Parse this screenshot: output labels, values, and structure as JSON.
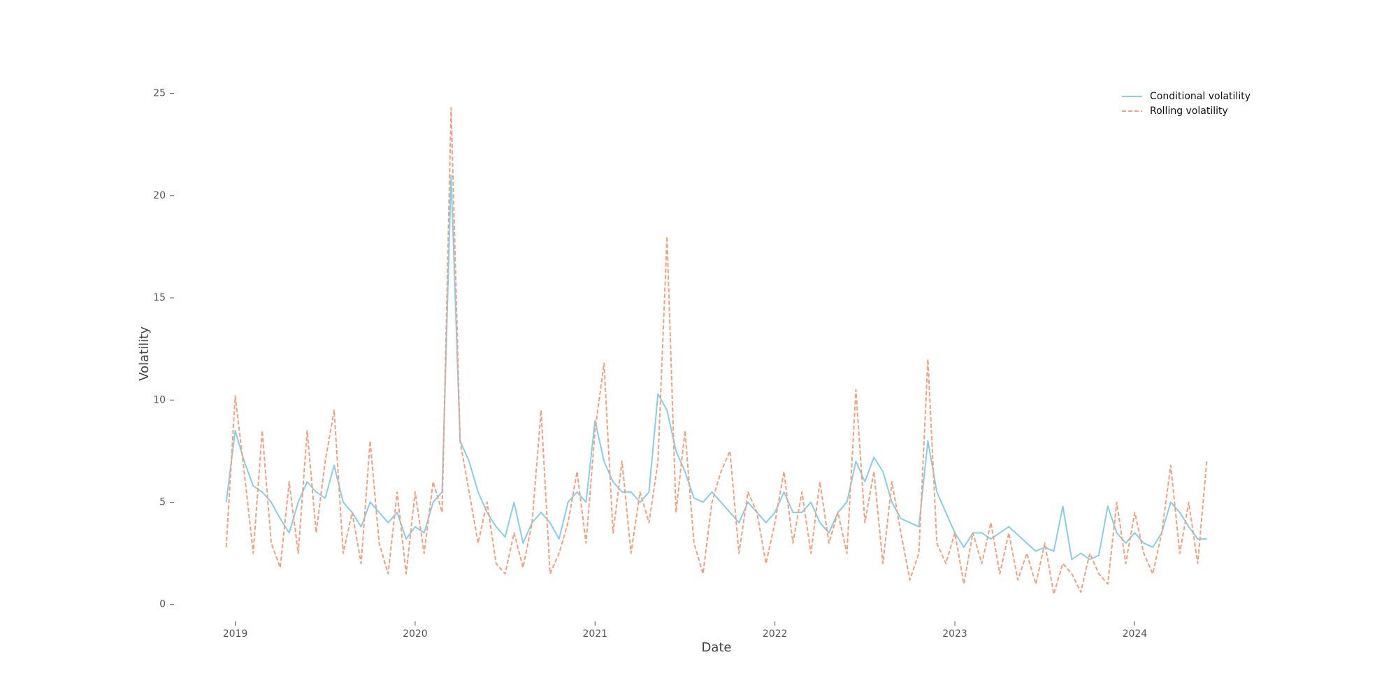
{
  "chart_data": {
    "type": "line",
    "x_label": "Date",
    "y_label": "Volatility",
    "x": [
      2018.95,
      2019.0,
      2019.05,
      2019.1,
      2019.15,
      2019.2,
      2019.25,
      2019.3,
      2019.35,
      2019.4,
      2019.45,
      2019.5,
      2019.55,
      2019.6,
      2019.65,
      2019.7,
      2019.75,
      2019.8,
      2019.85,
      2019.9,
      2019.95,
      2020.0,
      2020.05,
      2020.1,
      2020.15,
      2020.2,
      2020.25,
      2020.3,
      2020.35,
      2020.4,
      2020.45,
      2020.5,
      2020.55,
      2020.6,
      2020.65,
      2020.7,
      2020.75,
      2020.8,
      2020.85,
      2020.9,
      2020.95,
      2021.0,
      2021.05,
      2021.1,
      2021.15,
      2021.2,
      2021.25,
      2021.3,
      2021.35,
      2021.4,
      2021.45,
      2021.5,
      2021.55,
      2021.6,
      2021.65,
      2021.7,
      2021.75,
      2021.8,
      2021.85,
      2021.9,
      2021.95,
      2022.0,
      2022.05,
      2022.1,
      2022.15,
      2022.2,
      2022.25,
      2022.3,
      2022.35,
      2022.4,
      2022.45,
      2022.5,
      2022.55,
      2022.6,
      2022.65,
      2022.7,
      2022.75,
      2022.8,
      2022.85,
      2022.9,
      2022.95,
      2023.0,
      2023.05,
      2023.1,
      2023.15,
      2023.2,
      2023.25,
      2023.3,
      2023.35,
      2023.4,
      2023.45,
      2023.5,
      2023.55,
      2023.6,
      2023.65,
      2023.7,
      2023.75,
      2023.8,
      2023.85,
      2023.9,
      2023.95,
      2024.0,
      2024.05,
      2024.1,
      2024.15,
      2024.2,
      2024.25,
      2024.3,
      2024.35,
      2024.4
    ],
    "series": [
      {
        "name": "Conditional volatility",
        "color": "#87ceeb",
        "linestyle": "solid",
        "values": [
          5.0,
          8.5,
          7.0,
          5.8,
          5.5,
          5.0,
          4.2,
          3.5,
          5.0,
          6.0,
          5.5,
          5.2,
          6.8,
          5.0,
          4.5,
          3.8,
          5.0,
          4.5,
          4.0,
          4.5,
          3.2,
          3.8,
          3.5,
          5.0,
          5.5,
          21.0,
          8.0,
          7.0,
          5.5,
          4.5,
          3.8,
          3.3,
          5.0,
          3.0,
          4.0,
          4.5,
          4.0,
          3.2,
          5.0,
          5.5,
          5.0,
          9.0,
          7.0,
          6.0,
          5.5,
          5.5,
          5.0,
          5.5,
          10.3,
          9.5,
          7.5,
          6.5,
          5.2,
          5.0,
          5.5,
          5.0,
          4.5,
          4.0,
          5.0,
          4.5,
          4.0,
          4.5,
          5.5,
          4.5,
          4.5,
          5.0,
          4.0,
          3.5,
          4.5,
          5.0,
          7.0,
          6.0,
          7.2,
          6.5,
          5.0,
          4.2,
          4.0,
          3.8,
          8.0,
          5.5,
          4.5,
          3.5,
          2.8,
          3.5,
          3.5,
          3.2,
          3.5,
          3.8,
          3.4,
          3.0,
          2.6,
          2.8,
          2.6,
          4.8,
          2.2,
          2.5,
          2.2,
          2.4,
          4.8,
          3.5,
          3.0,
          3.5,
          3.0,
          2.8,
          3.5,
          5.0,
          4.5,
          3.8,
          3.2,
          3.2
        ]
      },
      {
        "name": "Rolling volatility",
        "color": "#f4a07e",
        "linestyle": "dashed",
        "values": [
          2.8,
          10.2,
          6.5,
          2.5,
          8.5,
          3.0,
          1.8,
          6.0,
          2.5,
          8.5,
          3.5,
          7.0,
          9.5,
          2.5,
          4.5,
          2.0,
          8.0,
          3.0,
          1.5,
          5.5,
          1.5,
          5.5,
          2.5,
          6.0,
          4.5,
          24.3,
          8.0,
          5.5,
          3.0,
          5.0,
          2.0,
          1.5,
          3.5,
          1.8,
          4.0,
          9.5,
          1.5,
          2.5,
          4.0,
          6.5,
          3.0,
          8.5,
          11.8,
          3.5,
          7.0,
          2.5,
          5.5,
          4.0,
          7.0,
          18.0,
          4.5,
          8.5,
          3.0,
          1.5,
          5.0,
          6.5,
          7.5,
          2.5,
          5.5,
          4.5,
          2.0,
          4.0,
          6.5,
          3.0,
          5.5,
          2.5,
          6.0,
          3.0,
          4.5,
          2.5,
          10.5,
          4.0,
          6.5,
          2.0,
          6.0,
          3.5,
          1.2,
          2.5,
          12.0,
          3.0,
          2.0,
          3.5,
          1.0,
          3.5,
          2.0,
          4.0,
          1.5,
          3.5,
          1.2,
          2.5,
          1.0,
          3.0,
          0.5,
          2.0,
          1.5,
          0.6,
          2.5,
          1.5,
          1.0,
          5.0,
          2.0,
          4.5,
          2.5,
          1.5,
          3.5,
          6.8,
          2.5,
          5.0,
          2.0,
          7.0
        ]
      }
    ],
    "xlim": [
      2018.66,
      2024.69
    ],
    "xticks": [
      2019,
      2020,
      2021,
      2022,
      2023,
      2024
    ],
    "ylim": [
      -0.9,
      25.5
    ],
    "yticks": [
      0,
      5,
      10,
      15,
      20,
      25
    ],
    "grid": false,
    "legend": "upper right"
  }
}
